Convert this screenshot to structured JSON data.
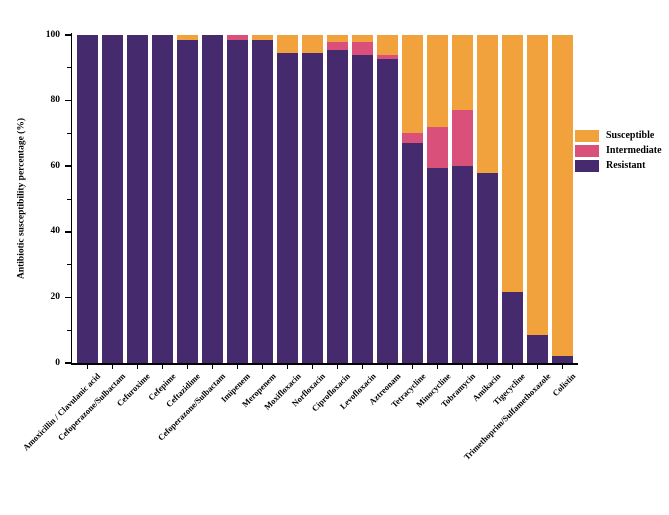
{
  "figure": {
    "y_axis_title": "Antibiotic susceptibility percentage (%)"
  },
  "chart_data": {
    "type": "bar",
    "stacked": true,
    "orientation": "vertical",
    "title": "",
    "xlabel": "",
    "ylabel": "Antibiotic susceptibility percentage (%)",
    "ylim": [
      0,
      100
    ],
    "yticks": [
      0,
      20,
      40,
      60,
      80,
      100
    ],
    "minor_yticks": [
      10,
      30,
      50,
      70,
      90
    ],
    "grid": false,
    "legend_position": "right",
    "legend_order": [
      "Susceptible",
      "Intermediate",
      "Resistant"
    ],
    "categories": [
      "Amoxicillin / Clavulanic acid",
      "Cefoperazone/Sulbactam",
      "Cefuroxime",
      "Cefepime",
      "Ceftazidime",
      "Cefoperazone/Sulbactam",
      "Imipenem",
      "Meropenem",
      "Moxifloxacin",
      "Norfloxacin",
      "Ciprofloxacin",
      "Levofloxacin",
      "Aztreonam",
      "Tetracycline",
      "Minocycline",
      "Tobramycin",
      "Amikacin",
      "Tigecycline",
      "Trimethoprim/Sulfamethoxazole",
      "Colistin"
    ],
    "series": [
      {
        "name": "Susceptible",
        "color": "#F2A23C",
        "values": [
          0,
          0,
          0,
          0,
          1.5,
          0,
          0,
          1.5,
          5.5,
          5.5,
          2.2,
          2.0,
          6.0,
          30,
          28,
          23,
          42,
          78.5,
          91.5,
          98
        ]
      },
      {
        "name": "Intermediate",
        "color": "#D9507A",
        "values": [
          0,
          0,
          0,
          0,
          0,
          0,
          1.5,
          0,
          0,
          0,
          2.3,
          4.2,
          1.3,
          3,
          12.5,
          17,
          0,
          0,
          0,
          0
        ]
      },
      {
        "name": "Resistant",
        "color": "#452A6E",
        "values": [
          100,
          100,
          100,
          100,
          98.5,
          100,
          98.5,
          98.5,
          94.5,
          94.5,
          95.5,
          93.8,
          92.7,
          67,
          59.5,
          60,
          58,
          21.5,
          8.5,
          2
        ]
      }
    ]
  }
}
